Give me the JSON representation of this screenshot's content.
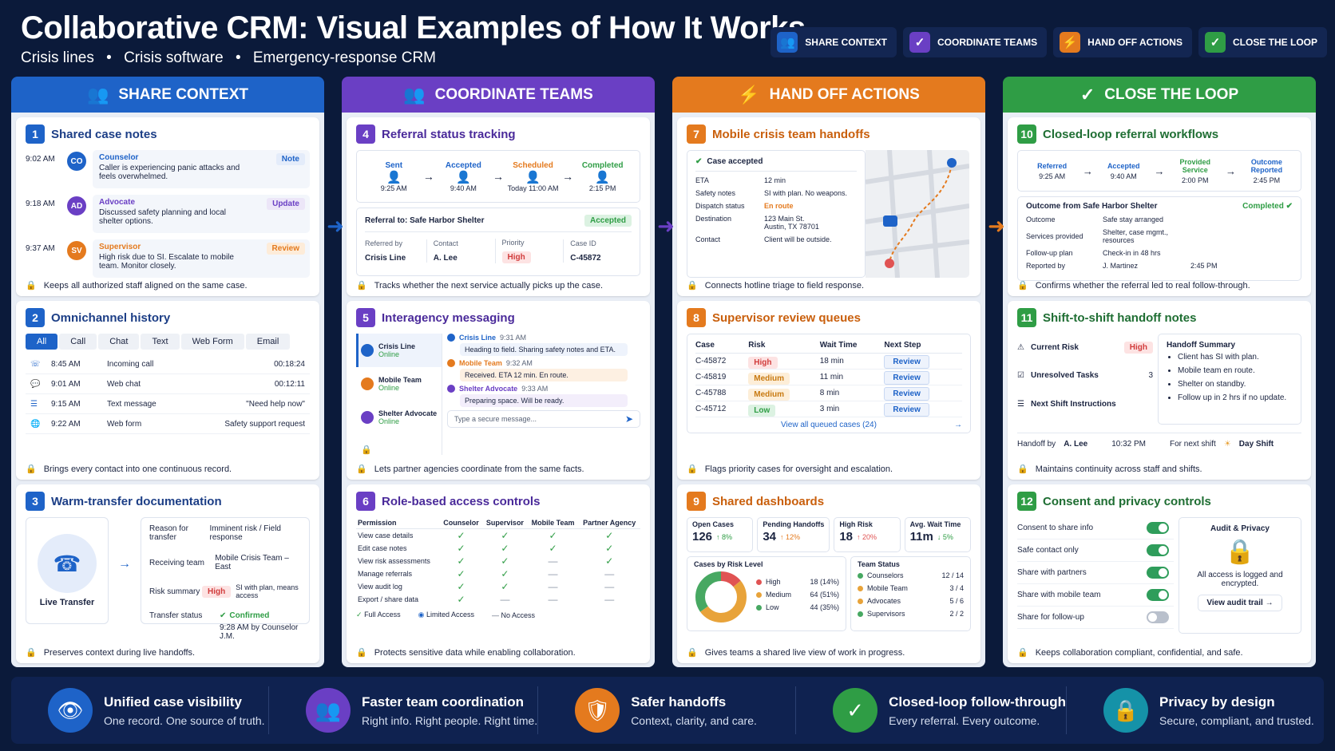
{
  "header": {
    "title": "Collaborative CRM: Visual Examples of How It Works",
    "subtitle_items": [
      "Crisis lines",
      "•",
      "Crisis software",
      "•",
      "Emergency-response CRM"
    ]
  },
  "legend": [
    {
      "label": "SHARE CONTEXT",
      "color": "#1e63c8",
      "icon": "people-icon"
    },
    {
      "label": "COORDINATE TEAMS",
      "color": "#6a3fc4",
      "icon": "check-shield-icon"
    },
    {
      "label": "HAND OFF ACTIONS",
      "color": "#e47a1e",
      "icon": "lightning-icon"
    },
    {
      "label": "CLOSE THE LOOP",
      "color": "#2f9d45",
      "icon": "check-shield-icon"
    }
  ],
  "colors": {
    "blue": "#1e63c8",
    "purple": "#6a3fc4",
    "orange": "#e47a1e",
    "green": "#2f9d45",
    "high": "#e05353",
    "medium": "#e8a33a",
    "low": "#47a862"
  },
  "columns": [
    "SHARE CONTEXT",
    "COORDINATE TEAMS",
    "HAND OFF ACTIONS",
    "CLOSE THE LOOP"
  ],
  "c1": {
    "num": "1",
    "title": "Shared case notes",
    "notes": [
      {
        "time": "9:02 AM",
        "initials": "CO",
        "role": "Counselor",
        "text": "Caller is experiencing panic attacks and feels overwhelmed.",
        "tag": "Note"
      },
      {
        "time": "9:18 AM",
        "initials": "AD",
        "role": "Advocate",
        "text": "Discussed safety planning and local shelter options.",
        "tag": "Update"
      },
      {
        "time": "9:37 AM",
        "initials": "SV",
        "role": "Supervisor",
        "text": "High risk due to SI. Escalate to mobile team. Monitor closely.",
        "tag": "Review"
      }
    ],
    "footer": "Keeps all authorized staff aligned on the same case."
  },
  "c2": {
    "num": "2",
    "title": "Omnichannel history",
    "tabs": [
      "All",
      "Call",
      "Chat",
      "Text",
      "Web Form",
      "Email"
    ],
    "rows": [
      {
        "time": "8:45 AM",
        "type": "Incoming call",
        "detail": "00:18:24"
      },
      {
        "time": "9:01 AM",
        "type": "Web chat",
        "detail": "00:12:11"
      },
      {
        "time": "9:15 AM",
        "type": "Text message",
        "detail": "\"Need help now\""
      },
      {
        "time": "9:22 AM",
        "type": "Web form",
        "detail": "Safety support request"
      }
    ],
    "footer": "Brings every contact into one continuous record."
  },
  "c3": {
    "num": "3",
    "title": "Warm-transfer documentation",
    "live": "Live Transfer",
    "fields": [
      {
        "k": "Reason for transfer",
        "v": "Imminent risk / Field response"
      },
      {
        "k": "Receiving team",
        "v": "Mobile Crisis Team – East"
      }
    ],
    "risk_k": "Risk summary",
    "risk_pill": "High",
    "risk_v": "SI with plan, means access",
    "status_k": "Transfer status",
    "status_v": "Confirmed",
    "status_sub": "9:28 AM by Counselor J.M.",
    "footer": "Preserves context during live handoffs."
  },
  "c4": {
    "num": "4",
    "title": "Referral status tracking",
    "steps": [
      {
        "label": "Sent",
        "time": "9:25 AM",
        "color": "#1e63c8"
      },
      {
        "label": "Accepted",
        "time": "9:40 AM",
        "color": "#1e63c8"
      },
      {
        "label": "Scheduled",
        "time": "Today 11:00 AM",
        "color": "#e47a1e"
      },
      {
        "label": "Completed",
        "time": "2:15 PM",
        "color": "#2f9d45"
      }
    ],
    "referral_to": "Referral to: Safe Harbor Shelter",
    "status": "Accepted",
    "cols": [
      {
        "k": "Referred by",
        "v": "Crisis Line"
      },
      {
        "k": "Contact",
        "v": "A. Lee"
      },
      {
        "k": "Priority",
        "v": "High"
      },
      {
        "k": "Case ID",
        "v": "C-45872"
      }
    ],
    "footer": "Tracks whether the next service actually picks up the case."
  },
  "c5": {
    "num": "5",
    "title": "Interagency messaging",
    "contacts": [
      {
        "name": "Crisis Line",
        "status": "Online"
      },
      {
        "name": "Mobile Team",
        "status": "Online"
      },
      {
        "name": "Shelter Advocate",
        "status": "Online"
      }
    ],
    "messages": [
      {
        "from": "Crisis Line",
        "time": "9:31 AM",
        "text": "Heading to field. Sharing safety notes and ETA."
      },
      {
        "from": "Mobile Team",
        "time": "9:32 AM",
        "text": "Received. ETA 12 min. En route."
      },
      {
        "from": "Shelter Advocate",
        "time": "9:33 AM",
        "text": "Preparing space. Will be ready."
      }
    ],
    "placeholder": "Type a secure message...",
    "footer": "Lets partner agencies coordinate from the same facts."
  },
  "c6": {
    "num": "6",
    "title": "Role-based access controls",
    "headers": [
      "Permission",
      "Counselor",
      "Supervisor",
      "Mobile Team",
      "Partner Agency"
    ],
    "rows": [
      {
        "p": "View case details",
        "v": [
          "✓",
          "✓",
          "✓",
          "✓"
        ]
      },
      {
        "p": "Edit case notes",
        "v": [
          "✓",
          "✓",
          "✓",
          "✓"
        ]
      },
      {
        "p": "View risk assessments",
        "v": [
          "✓",
          "✓",
          "—",
          "✓"
        ]
      },
      {
        "p": "Manage referrals",
        "v": [
          "✓",
          "✓",
          "—",
          "—"
        ]
      },
      {
        "p": "View audit log",
        "v": [
          "✓",
          "✓",
          "—",
          "—"
        ]
      },
      {
        "p": "Export / share data",
        "v": [
          "✓",
          "—",
          "—",
          "—"
        ]
      }
    ],
    "legend": [
      "Full Access",
      "Limited Access",
      "No Access"
    ],
    "footer": "Protects sensitive data while enabling collaboration."
  },
  "c7": {
    "num": "7",
    "title": "Mobile crisis team handoffs",
    "accepted": "Case accepted",
    "fields": [
      {
        "k": "ETA",
        "v": "12 min"
      },
      {
        "k": "Safety notes",
        "v": "SI with plan. No weapons."
      },
      {
        "k": "Dispatch status",
        "v": "En route"
      },
      {
        "k": "Destination",
        "v": "123 Main St.\nAustin, TX 78701"
      },
      {
        "k": "Contact",
        "v": "Client will be outside."
      }
    ],
    "footer": "Connects hotline triage to field response."
  },
  "c8": {
    "num": "8",
    "title": "Supervisor review queues",
    "headers": [
      "Case",
      "Risk",
      "Wait Time",
      "Next Step"
    ],
    "rows": [
      {
        "c": "C-45872",
        "r": "High",
        "w": "18 min",
        "n": "Review"
      },
      {
        "c": "C-45819",
        "r": "Medium",
        "w": "11 min",
        "n": "Review"
      },
      {
        "c": "C-45788",
        "r": "Medium",
        "w": "8 min",
        "n": "Review"
      },
      {
        "c": "C-45712",
        "r": "Low",
        "w": "3 min",
        "n": "Review"
      }
    ],
    "link": "View all queued cases (24)",
    "footer": "Flags priority cases for oversight and escalation."
  },
  "c9": {
    "num": "9",
    "title": "Shared dashboards",
    "kpis": [
      {
        "k": "Open Cases",
        "v": "126",
        "d": "↑ 8%",
        "dc": "#2f9d45"
      },
      {
        "k": "Pending Handoffs",
        "v": "34",
        "d": "↑ 12%",
        "dc": "#e47a1e"
      },
      {
        "k": "High Risk",
        "v": "18",
        "d": "↑ 20%",
        "dc": "#e05353"
      },
      {
        "k": "Avg. Wait Time",
        "v": "11m",
        "d": "↓ 5%",
        "dc": "#2f9d45"
      }
    ],
    "risk_title": "Cases by Risk Level",
    "risk": [
      {
        "k": "High",
        "v": "18 (14%)",
        "c": "#e05353",
        "pct": 14
      },
      {
        "k": "Medium",
        "v": "64 (51%)",
        "c": "#e8a33a",
        "pct": 51
      },
      {
        "k": "Low",
        "v": "44 (35%)",
        "c": "#47a862",
        "pct": 35
      }
    ],
    "team_title": "Team Status",
    "team": [
      {
        "k": "Counselors",
        "v": "12 / 14",
        "c": "#47a862"
      },
      {
        "k": "Mobile Team",
        "v": "3 / 4",
        "c": "#e8a33a"
      },
      {
        "k": "Advocates",
        "v": "5 / 6",
        "c": "#e8a33a"
      },
      {
        "k": "Supervisors",
        "v": "2 / 2",
        "c": "#47a862"
      }
    ],
    "footer": "Gives teams a shared live view of work in progress."
  },
  "c10": {
    "num": "10",
    "title": "Closed-loop referral workflows",
    "steps": [
      {
        "label": "Referred",
        "time": "9:25 AM"
      },
      {
        "label": "Accepted",
        "time": "9:40 AM"
      },
      {
        "label": "Provided Service",
        "time": "2:00 PM"
      },
      {
        "label": "Outcome Reported",
        "time": "2:45 PM"
      }
    ],
    "outcome_title": "Outcome from Safe Harbor Shelter",
    "outcome_status": "Completed",
    "fields": [
      {
        "k": "Outcome",
        "v": "Safe stay arranged"
      },
      {
        "k": "Services provided",
        "v": "Shelter, case mgmt., resources"
      },
      {
        "k": "Follow-up plan",
        "v": "Check-in in 48 hrs"
      },
      {
        "k": "Reported by",
        "v": "J. Martinez",
        "t": "2:45 PM"
      }
    ],
    "footer": "Confirms whether the referral led to real follow-through."
  },
  "c11": {
    "num": "11",
    "title": "Shift-to-shift handoff notes",
    "current_risk": "Current Risk",
    "risk_pill": "High",
    "unresolved": "Unresolved Tasks",
    "unresolved_v": "3",
    "next_shift": "Next Shift Instructions",
    "summary_title": "Handoff Summary",
    "summary": [
      "Client has SI with plan.",
      "Mobile team en route.",
      "Shelter on standby.",
      "Follow up in 2 hrs if no update."
    ],
    "handoff_by": "Handoff by",
    "handoff_name": "A. Lee",
    "handoff_time": "10:32 PM",
    "for_next": "For next shift",
    "next_shift_v": "Day Shift",
    "footer": "Maintains continuity across staff and shifts."
  },
  "c12": {
    "num": "12",
    "title": "Consent and privacy controls",
    "toggles": [
      {
        "k": "Consent to share info",
        "on": true
      },
      {
        "k": "Safe contact only",
        "on": true
      },
      {
        "k": "Share with partners",
        "on": true
      },
      {
        "k": "Share with mobile team",
        "on": true
      },
      {
        "k": "Share for follow-up",
        "on": false
      }
    ],
    "audit_title": "Audit & Privacy",
    "audit_text": "All access is logged and encrypted.",
    "audit_btn": "View audit trail →",
    "footer": "Keeps collaboration compliant, confidential, and safe."
  },
  "bottom": [
    {
      "t": "Unified case visibility",
      "s": "One record. One source of truth.",
      "c": "#1e63c8",
      "icon": "eye-icon"
    },
    {
      "t": "Faster team coordination",
      "s": "Right info. Right people. Right time.",
      "c": "#6a3fc4",
      "icon": "people-icon"
    },
    {
      "t": "Safer handoffs",
      "s": "Context, clarity, and care.",
      "c": "#e47a1e",
      "icon": "shield-icon"
    },
    {
      "t": "Closed-loop follow-through",
      "s": "Every referral. Every outcome.",
      "c": "#2f9d45",
      "icon": "check-circle-icon"
    },
    {
      "t": "Privacy by design",
      "s": "Secure, compliant, and trusted.",
      "c": "#1592a8",
      "icon": "lock-icon"
    }
  ]
}
